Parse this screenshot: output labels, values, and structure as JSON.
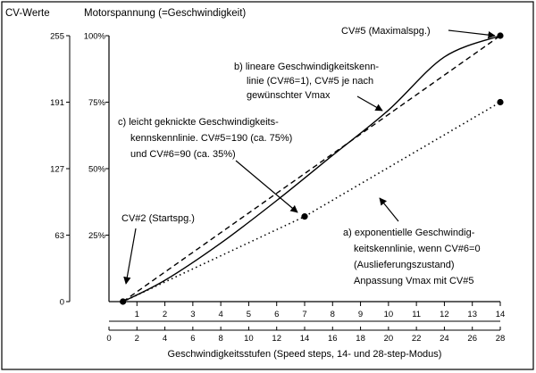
{
  "chart_data": {
    "type": "line",
    "headers": {
      "cv_axis": "CV-Werte",
      "voltage_axis": "Motorspannung (=Geschwindigkeit)"
    },
    "xlabel": "Geschwindigkeitsstufen (Speed steps, 14- und 28-step-Modus)",
    "x_ticks_14": [
      "1",
      "2",
      "3",
      "4",
      "5",
      "6",
      "7",
      "8",
      "9",
      "10",
      "11",
      "12",
      "13",
      "14"
    ],
    "x_ticks_28": [
      "0",
      "2",
      "4",
      "6",
      "8",
      "10",
      "12",
      "14",
      "16",
      "18",
      "20",
      "22",
      "24",
      "26",
      "28"
    ],
    "y_ticks_cv": [
      "0",
      "63",
      "127",
      "191",
      "255"
    ],
    "y_ticks_pct": [
      "25%",
      "50%",
      "75%",
      "100%"
    ],
    "xlim_28": [
      0,
      28
    ],
    "ylim_pct": [
      0,
      100
    ],
    "grid": false,
    "series": [
      {
        "key": "a",
        "style": "solid",
        "points": [
          [
            1,
            0
          ],
          [
            4,
            8
          ],
          [
            8,
            22
          ],
          [
            12,
            38
          ],
          [
            16,
            55
          ],
          [
            20,
            72
          ],
          [
            24,
            92
          ],
          [
            28,
            100
          ]
        ]
      },
      {
        "key": "b",
        "style": "dashed",
        "points": [
          [
            1,
            0
          ],
          [
            28,
            100
          ]
        ]
      },
      {
        "key": "c",
        "style": "dotted",
        "points": [
          [
            1,
            0
          ],
          [
            14,
            32
          ],
          [
            28,
            75
          ]
        ]
      }
    ],
    "markers": [
      [
        1,
        0
      ],
      [
        14,
        32
      ],
      [
        28,
        100
      ],
      [
        28,
        75
      ]
    ],
    "annotations": {
      "a": [
        "a) exponentielle Geschwindig-",
        "keitskennlinie, wenn CV#6=0",
        "(Auslieferungszustand)",
        "Anpassung Vmax mit CV#5"
      ],
      "b": [
        "b) lineare Geschwindigkeitskenn-",
        "linie (CV#6=1), CV#5 je nach",
        "gewünschter Vmax"
      ],
      "c": [
        "c) leicht geknickte Geschwindigkeits-",
        "kennskennlinie. CV#5=190 (ca. 75%)",
        "und CV#6=90 (ca. 35%)"
      ],
      "cv2": "CV#2 (Startspg.)",
      "cv5": "CV#5 (Maximalspg.)"
    }
  }
}
